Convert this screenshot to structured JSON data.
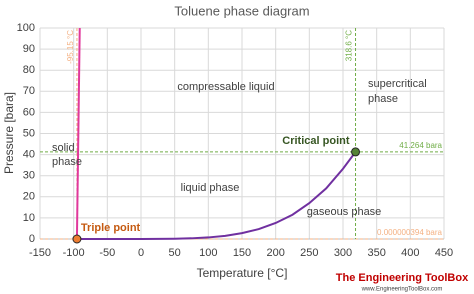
{
  "chart_data": {
    "type": "line",
    "title": "Toluene phase diagram",
    "x_label": "Temperature [°C]",
    "y_label": "Pressure [bara]",
    "xlim": [
      -150,
      450
    ],
    "ylim": [
      0,
      100
    ],
    "xticks": [
      -150,
      -100,
      -50,
      0,
      50,
      100,
      150,
      200,
      250,
      300,
      350,
      400,
      450
    ],
    "yticks": [
      0,
      10,
      20,
      30,
      40,
      50,
      60,
      70,
      80,
      90,
      100
    ],
    "grid": true,
    "series": [
      {
        "color": "#e0389c",
        "x": [
          -95.15,
          -91
        ],
        "values": [
          3.94e-07,
          100
        ]
      },
      {
        "color": "#7030a0",
        "x": [
          -95.15,
          0,
          25,
          50,
          75,
          100,
          125,
          150,
          175,
          200,
          225,
          250,
          275,
          300,
          318.6
        ],
        "values": [
          3.94e-07,
          0.009,
          0.038,
          0.123,
          0.326,
          0.742,
          1.5,
          2.78,
          4.7,
          7.6,
          11.5,
          17,
          24,
          33.3,
          41.264
        ]
      }
    ],
    "reference_lines": [
      {
        "axis": "x",
        "value": -95.15,
        "label": "-95.15 °C",
        "color": "#f4b183"
      },
      {
        "axis": "y",
        "value": 3.94e-07,
        "label": "0.000000394 bara",
        "color": "#f4b183"
      },
      {
        "axis": "x",
        "value": 318.6,
        "label": "318.6 °C",
        "color": "#70ad47"
      },
      {
        "axis": "y",
        "value": 41.264,
        "label": "41.264 bara",
        "color": "#70ad47"
      }
    ],
    "points": [
      {
        "name": "Triple point",
        "x": -95.15,
        "y": 3.94e-07,
        "color": "#ed7d31",
        "label_color": "#c55a11"
      },
      {
        "name": "Critical point",
        "x": 318.6,
        "y": 41.264,
        "color": "#548235",
        "label_color": "#375623"
      }
    ],
    "annotations": {
      "compressable": "compressable liquid",
      "supercritical": [
        "supercritical",
        "phase"
      ],
      "solid": [
        "solid",
        "phase"
      ],
      "liquid": "liquid phase",
      "gaseous": "gaseous phase"
    },
    "credit": "The Engineering ToolBox",
    "credit_url": "www.EngineeringToolBox.com"
  }
}
